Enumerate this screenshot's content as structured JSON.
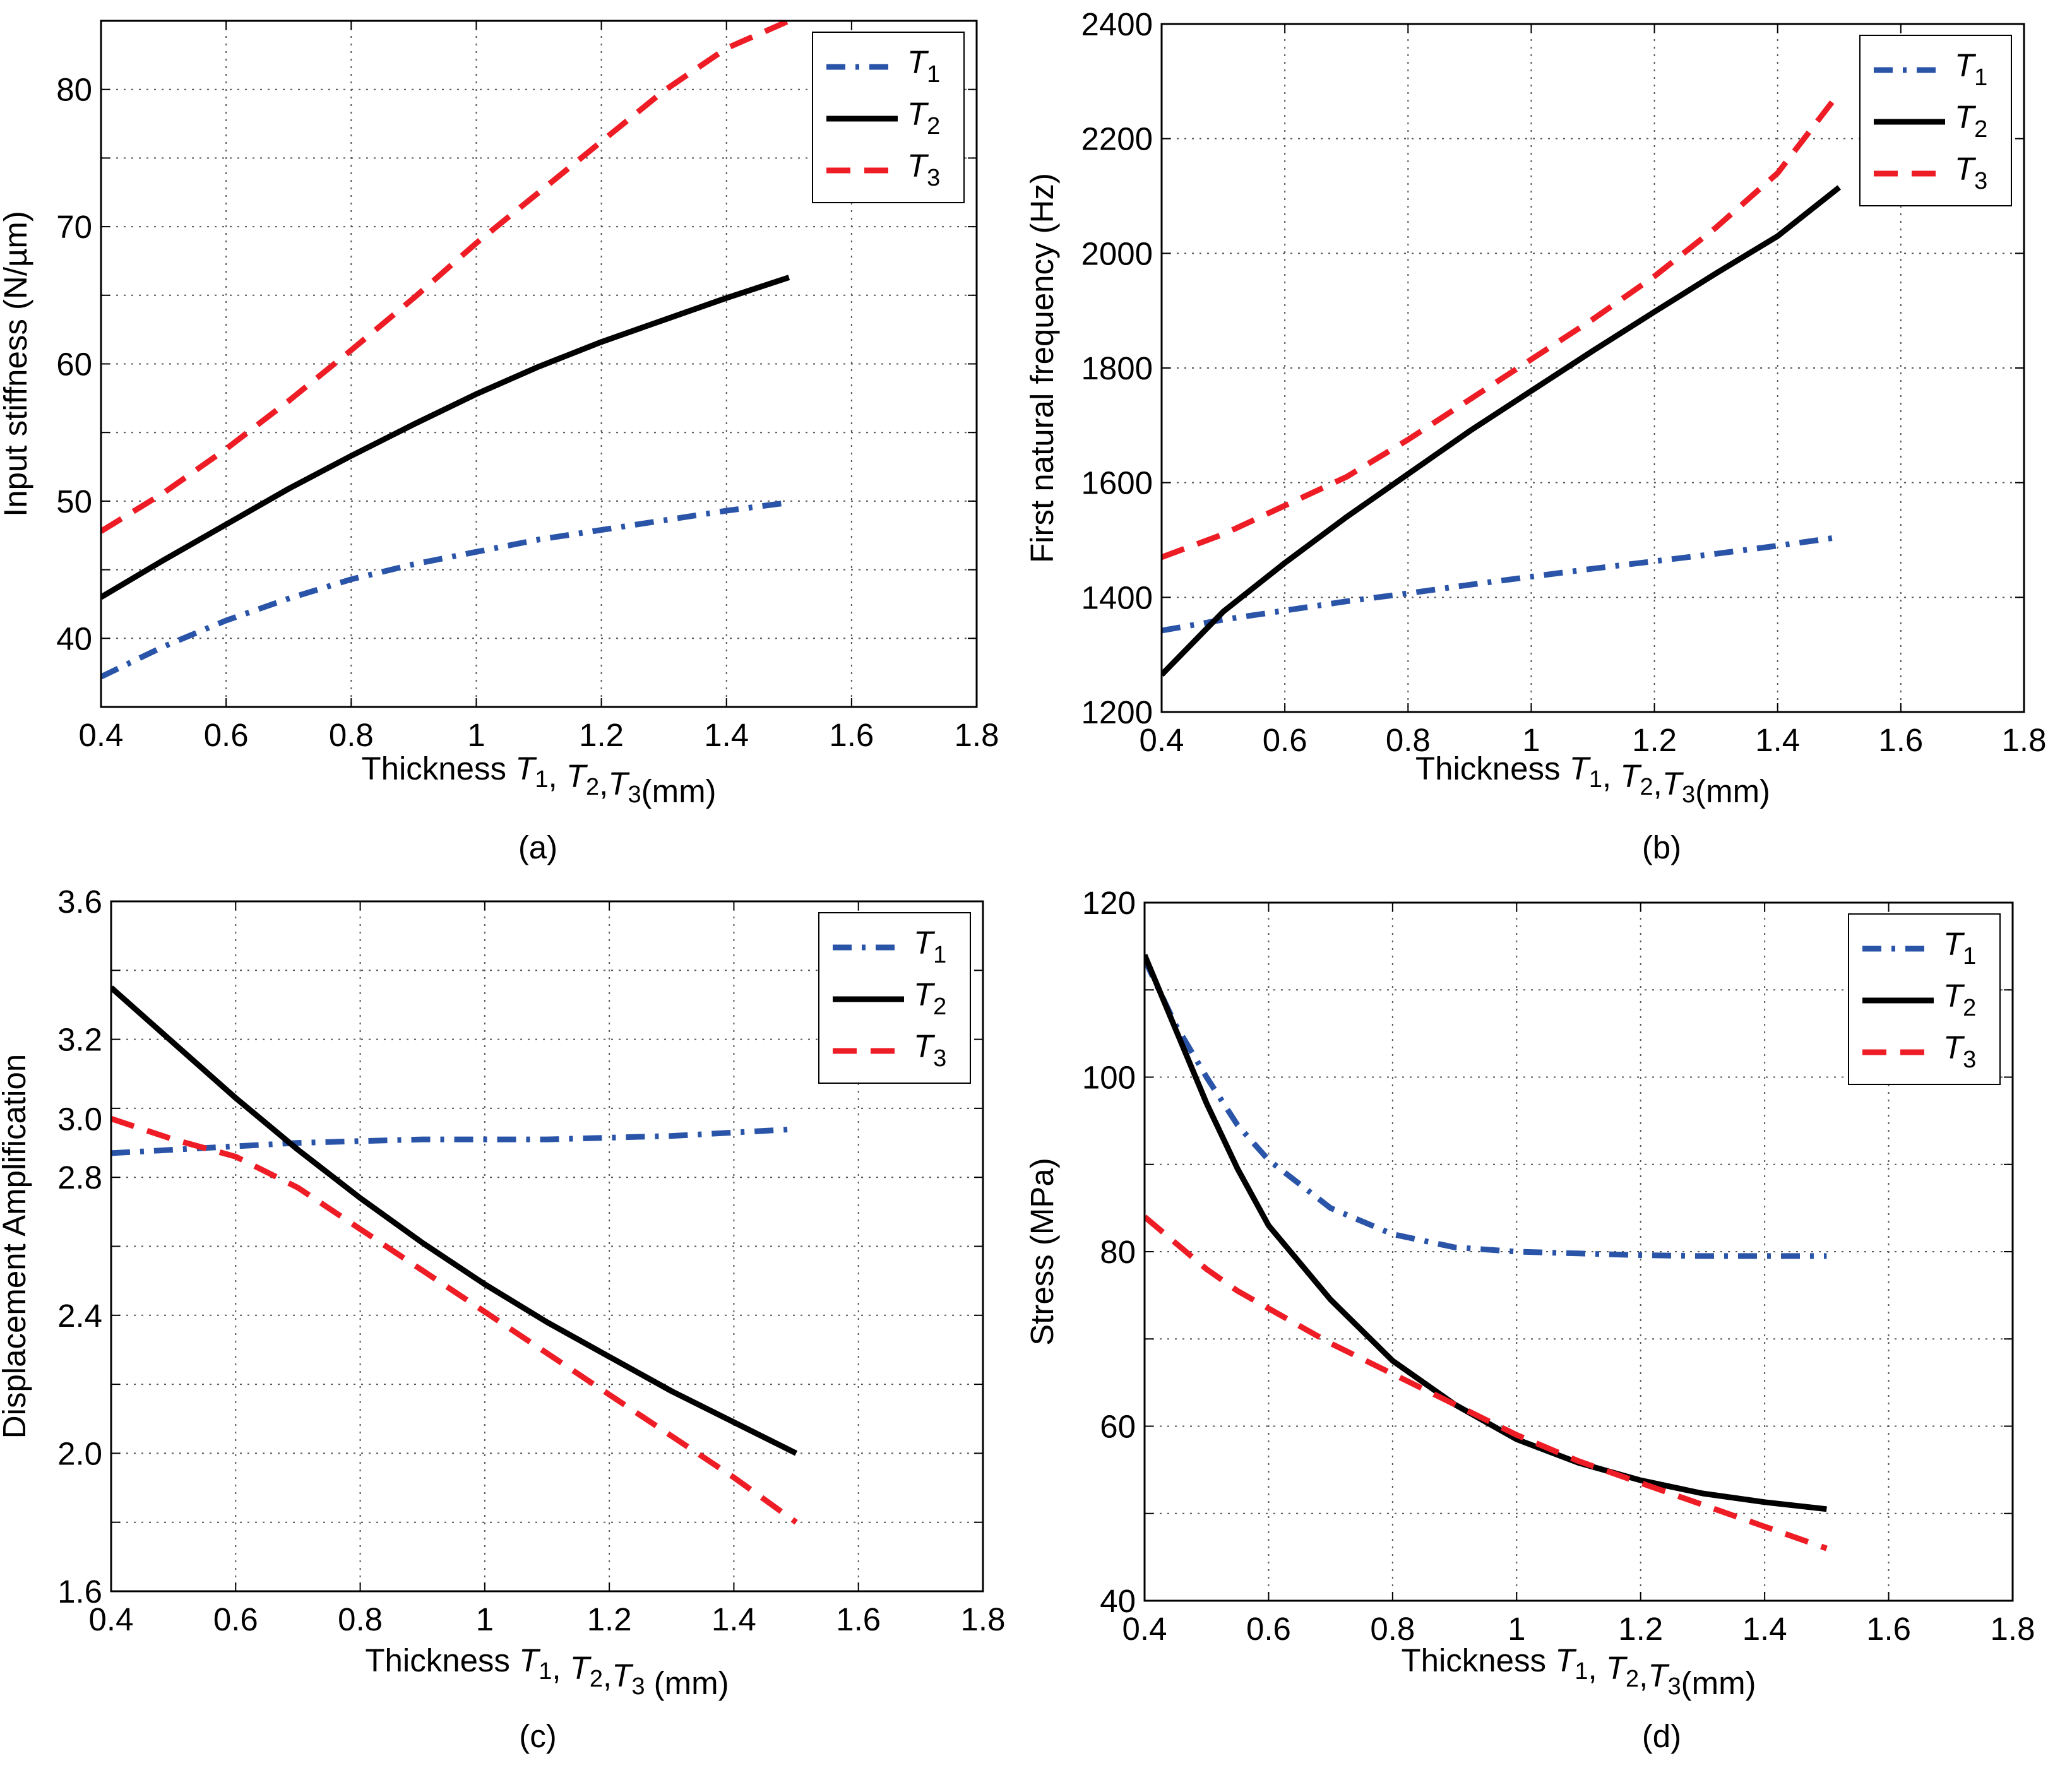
{
  "colors": {
    "T1": "#2a54a8",
    "T2": "#000000",
    "T3": "#ee1c25",
    "grid": "#555555"
  },
  "chart_data": [
    {
      "id": "a",
      "type": "line",
      "caption": "(a)",
      "title": "",
      "ylabel": "Input stiffness (N/µm)",
      "xlabel": {
        "prefix": "Thickness ",
        "sep1": ", ",
        "sep2": ",",
        "suffix": "(mm)"
      },
      "xlim": [
        0.4,
        1.8
      ],
      "ylim": [
        35,
        85
      ],
      "xticks": [
        0.4,
        0.6,
        0.8,
        1,
        1.2,
        1.4,
        1.6,
        1.8
      ],
      "yticks": [
        40,
        50,
        60,
        70,
        80
      ],
      "xtick_labels": [
        "0.4",
        "0.6",
        "0.8",
        "1",
        "1.2",
        "1.4",
        "1.6",
        "1.8"
      ],
      "ytick_labels": [
        "40",
        "50",
        "60",
        "70",
        "80"
      ],
      "yminor": [
        45,
        55,
        65,
        75
      ],
      "grid": true,
      "legend": {
        "position": "top-right",
        "entries": [
          {
            "name": "T",
            "sub": "1"
          },
          {
            "name": "T",
            "sub": "2"
          },
          {
            "name": "T",
            "sub": "3"
          }
        ]
      },
      "x": [
        0.4,
        0.5,
        0.6,
        0.7,
        0.8,
        0.9,
        1.0,
        1.1,
        1.2,
        1.3,
        1.4,
        1.5
      ],
      "series": [
        {
          "name": "T1",
          "style": "dashdot",
          "values": [
            37.2,
            39.4,
            41.3,
            42.9,
            44.3,
            45.4,
            46.3,
            47.2,
            47.9,
            48.6,
            49.3,
            49.9
          ]
        },
        {
          "name": "T2",
          "style": "solid",
          "values": [
            43.0,
            45.7,
            48.3,
            50.9,
            53.3,
            55.6,
            57.8,
            59.8,
            61.6,
            63.2,
            64.8,
            66.3
          ]
        },
        {
          "name": "T3",
          "style": "dashed",
          "values": [
            47.8,
            50.6,
            53.8,
            57.3,
            61.0,
            64.8,
            68.8,
            72.5,
            76.2,
            79.9,
            83.0,
            85.0
          ]
        }
      ]
    },
    {
      "id": "b",
      "type": "line",
      "caption": "(b)",
      "title": "",
      "ylabel": "First natural frequency (Hz)",
      "xlabel": {
        "prefix": "Thickness ",
        "sep1": ", ",
        "sep2": ",",
        "suffix": "(mm)"
      },
      "xlim": [
        0.4,
        1.8
      ],
      "ylim": [
        1200,
        2400
      ],
      "xticks": [
        0.4,
        0.6,
        0.8,
        1,
        1.2,
        1.4,
        1.6,
        1.8
      ],
      "yticks": [
        1200,
        1400,
        1600,
        1800,
        2000,
        2200,
        2400
      ],
      "xtick_labels": [
        "0.4",
        "0.6",
        "0.8",
        "1",
        "1.2",
        "1.4",
        "1.6",
        "1.8"
      ],
      "ytick_labels": [
        "1200",
        "1400",
        "1600",
        "1800",
        "2000",
        "2200",
        "2400"
      ],
      "yminor": [],
      "grid": true,
      "legend": {
        "position": "top-right",
        "entries": [
          {
            "name": "T",
            "sub": "1"
          },
          {
            "name": "T",
            "sub": "2"
          },
          {
            "name": "T",
            "sub": "3"
          }
        ]
      },
      "x": [
        0.4,
        0.5,
        0.6,
        0.7,
        0.8,
        0.9,
        1.0,
        1.1,
        1.2,
        1.3,
        1.4,
        1.5
      ],
      "series": [
        {
          "name": "T1",
          "style": "dashdot",
          "values": [
            1342,
            1361,
            1377,
            1393,
            1407,
            1422,
            1436,
            1450,
            1463,
            1476,
            1490,
            1505
          ]
        },
        {
          "name": "T2",
          "style": "solid",
          "values": [
            1265,
            1375,
            1460,
            1540,
            1615,
            1690,
            1760,
            1830,
            1898,
            1965,
            2030,
            2115
          ]
        },
        {
          "name": "T3",
          "style": "dashed",
          "values": [
            1470,
            1510,
            1560,
            1610,
            1675,
            1745,
            1815,
            1885,
            1960,
            2045,
            2140,
            2280
          ]
        }
      ]
    },
    {
      "id": "c",
      "type": "line",
      "caption": "(c)",
      "title": "",
      "ylabel": "Displacement Amplification",
      "xlabel": {
        "prefix": "Thickness ",
        "sep1": ", ",
        "sep2": ",",
        "suffix": " (mm)"
      },
      "xlim": [
        0.4,
        1.8
      ],
      "ylim": [
        1.6,
        3.6
      ],
      "xticks": [
        0.4,
        0.6,
        0.8,
        1,
        1.2,
        1.4,
        1.6,
        1.8
      ],
      "yticks": [
        1.6,
        2.0,
        2.4,
        2.8,
        3.2,
        3.6
      ],
      "xtick_labels": [
        "0.4",
        "0.6",
        "0.8",
        "1",
        "1.2",
        "1.4",
        "1.6",
        "1.8"
      ],
      "ytick_labels": [
        "1.6",
        "2.0",
        "2.4",
        "2.8",
        "3.0",
        "3.2",
        "3.6"
      ],
      "ytick_label_values": [
        1.6,
        2.0,
        2.4,
        2.8,
        2.97,
        3.2,
        3.6
      ],
      "yminor": [
        1.8,
        2.2,
        2.6,
        3.0,
        3.4
      ],
      "grid": true,
      "legend": {
        "position": "top-right",
        "entries": [
          {
            "name": "T",
            "sub": "1"
          },
          {
            "name": "T",
            "sub": "2"
          },
          {
            "name": "T",
            "sub": "3"
          }
        ]
      },
      "x": [
        0.4,
        0.5,
        0.6,
        0.7,
        0.8,
        0.9,
        1.0,
        1.1,
        1.2,
        1.3,
        1.4,
        1.5
      ],
      "series": [
        {
          "name": "T1",
          "style": "dashdot",
          "values": [
            2.87,
            2.88,
            2.89,
            2.9,
            2.905,
            2.91,
            2.91,
            2.91,
            2.915,
            2.92,
            2.93,
            2.94
          ]
        },
        {
          "name": "T2",
          "style": "solid",
          "values": [
            3.35,
            3.19,
            3.03,
            2.88,
            2.74,
            2.61,
            2.49,
            2.38,
            2.28,
            2.18,
            2.09,
            2.0
          ]
        },
        {
          "name": "T3",
          "style": "dashed",
          "values": [
            2.97,
            2.91,
            2.86,
            2.77,
            2.65,
            2.53,
            2.41,
            2.29,
            2.17,
            2.05,
            1.93,
            1.8
          ]
        }
      ]
    },
    {
      "id": "d",
      "type": "line",
      "caption": "(d)",
      "title": "",
      "ylabel": "Stress (MPa)",
      "xlabel": {
        "prefix": "Thickness ",
        "sep1": ", ",
        "sep2": ",",
        "suffix": "(mm)"
      },
      "xlim": [
        0.4,
        1.8
      ],
      "ylim": [
        40,
        120
      ],
      "xticks": [
        0.4,
        0.6,
        0.8,
        1,
        1.2,
        1.4,
        1.6,
        1.8
      ],
      "yticks": [
        40,
        60,
        80,
        100,
        120
      ],
      "xtick_labels": [
        "0.4",
        "0.6",
        "0.8",
        "1",
        "1.2",
        "1.4",
        "1.6",
        "1.8"
      ],
      "ytick_labels": [
        "40",
        "60",
        "80",
        "100",
        "120"
      ],
      "yminor": [
        50,
        70,
        90,
        110
      ],
      "grid": true,
      "legend": {
        "position": "top-right",
        "entries": [
          {
            "name": "T",
            "sub": "1"
          },
          {
            "name": "T",
            "sub": "2"
          },
          {
            "name": "T",
            "sub": "3"
          }
        ]
      },
      "x": [
        0.4,
        0.45,
        0.5,
        0.55,
        0.6,
        0.7,
        0.8,
        0.9,
        1.0,
        1.1,
        1.2,
        1.3,
        1.4,
        1.5
      ],
      "series": [
        {
          "name": "T1",
          "style": "dashdot",
          "values": [
            113.5,
            106.0,
            100.0,
            94.5,
            90.5,
            85.0,
            82.0,
            80.5,
            80.0,
            79.8,
            79.6,
            79.5,
            79.5,
            79.5
          ]
        },
        {
          "name": "T2",
          "style": "solid",
          "values": [
            114.0,
            105.5,
            97.0,
            89.5,
            83.0,
            74.5,
            67.5,
            62.5,
            58.5,
            55.8,
            53.8,
            52.3,
            51.3,
            50.5
          ]
        },
        {
          "name": "T3",
          "style": "dashed",
          "values": [
            84.0,
            81.0,
            78.0,
            75.5,
            73.5,
            69.5,
            66.0,
            62.5,
            59.0,
            56.0,
            53.5,
            51.0,
            48.5,
            46.0
          ]
        }
      ]
    }
  ]
}
